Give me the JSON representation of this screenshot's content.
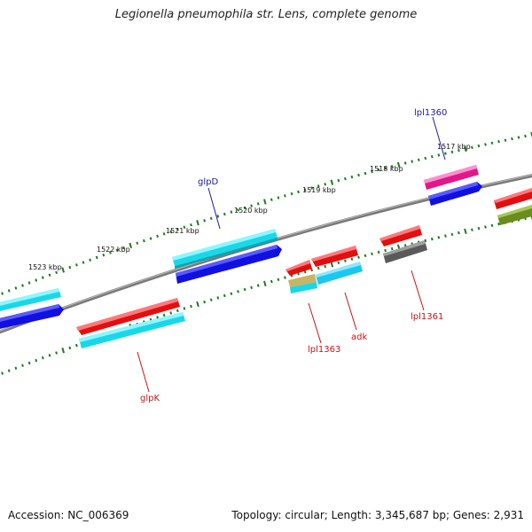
{
  "title": "Legionella pneumophila str. Lens, complete genome",
  "footer": {
    "accession": "Accession: NC_006369",
    "summary": "Topology: circular; Length: 3,345,687 bp; Genes: 2,931"
  },
  "ticks": [
    "1517 kbp",
    "1518 kbp",
    "1519 kbp",
    "1520 kbp",
    "1521 kbp",
    "1522 kbp",
    "1523 kbp"
  ],
  "gene_labels": {
    "lpl1360": "lpl1360",
    "glpD": "glpD",
    "lpl1361": "lpl1361",
    "adk": "adk",
    "lpl1363": "lpl1363",
    "glpK": "glpK"
  },
  "colors": {
    "forward_label": "#1a1aa8",
    "reverse_label": "#cc1111",
    "backbone": "#808080",
    "tick": "#1e7a1e",
    "cyan": "#1ee6f0",
    "blue": "#1414e6",
    "red": "#e61414",
    "magenta": "#e6148c",
    "olive": "#6b8c1e",
    "gray": "#5a5a5a",
    "khaki": "#c8b464"
  }
}
